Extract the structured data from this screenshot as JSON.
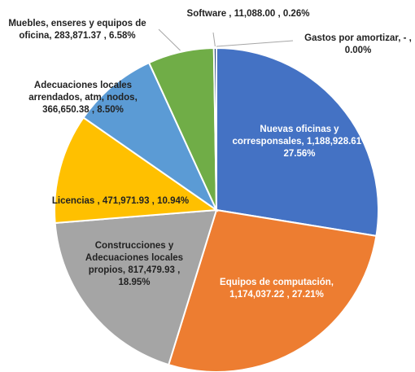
{
  "chart_data": {
    "type": "pie",
    "categories": [
      "Gastos por amortizar,",
      "Nuevas oficinas y corresponsales,",
      "Equipos de computación,",
      "Construcciones y Adecuaciones locales propios,",
      "Licencias ,",
      "Adecuaciones locales arrendados, atm, nodos,",
      "Muebles, enseres y equipos de oficina,",
      "Software ,"
    ],
    "values": [
      0,
      1188928.61,
      1174037.22,
      817479.93,
      471971.93,
      366650.38,
      283871.37,
      11088.0
    ],
    "value_labels": [
      "- ,",
      "1,188,928.61 ,",
      "1,174,037.22 ,",
      "817,479.93 ,",
      "471,971.93 ,",
      "366,650.38 ,",
      "283,871.37 ,",
      "11,088.00 ,"
    ],
    "percentages": [
      0.0,
      27.56,
      27.21,
      18.95,
      10.94,
      8.5,
      6.58,
      0.26
    ],
    "percentage_labels": [
      "0.00%",
      "27.56%",
      "27.21%",
      "18.95%",
      "10.94%",
      "8.50%",
      "6.58%",
      "0.26%"
    ],
    "colors": [
      "#9e480e",
      "#4472c4",
      "#ed7d31",
      "#a5a5a5",
      "#ffc000",
      "#5b9bd5",
      "#70ad47",
      "#264478"
    ]
  }
}
